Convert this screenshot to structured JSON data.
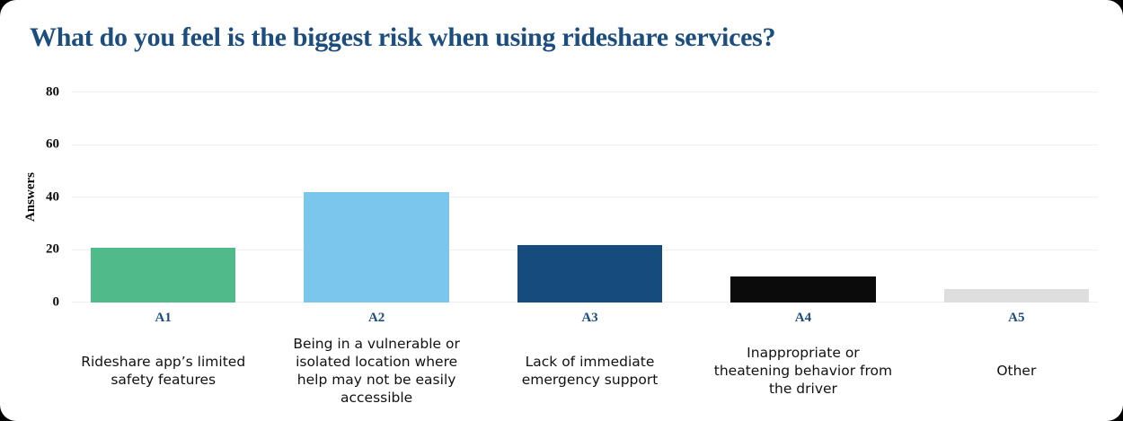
{
  "page": {
    "background_color": "#000000",
    "card_background_color": "#FFFFFF"
  },
  "title": "What do you feel is the biggest risk when using rideshare services?",
  "colors": {
    "title_text": "#1C4D7F",
    "category_id_text": "#1C4D7F",
    "axis_text": "#0D0D0D",
    "description_text": "#111111",
    "gridline": "#EFEFEF"
  },
  "chart_data": {
    "type": "bar",
    "title": "What do you feel is the biggest risk when using rideshare services?",
    "xlabel": "",
    "ylabel": "Answers",
    "ylim": [
      0,
      80
    ],
    "yticks": [
      0,
      20,
      40,
      60,
      80
    ],
    "grid": "horizontal",
    "legend": "none",
    "categories": [
      "A1",
      "A2",
      "A3",
      "A4",
      "A5"
    ],
    "category_descriptions": [
      "Rideshare app’s limited safety features",
      "Being in a vulnerable or isolated location where help may not be easily accessible",
      "Lack of immediate emergency support",
      "Inappropriate or theatening behavior from the driver",
      "Other"
    ],
    "values": [
      21,
      42,
      22,
      10,
      5
    ],
    "bar_colors": [
      "#50BA8B",
      "#7AC6ED",
      "#154B7D",
      "#0B0B0B",
      "#DEDEDE"
    ]
  }
}
